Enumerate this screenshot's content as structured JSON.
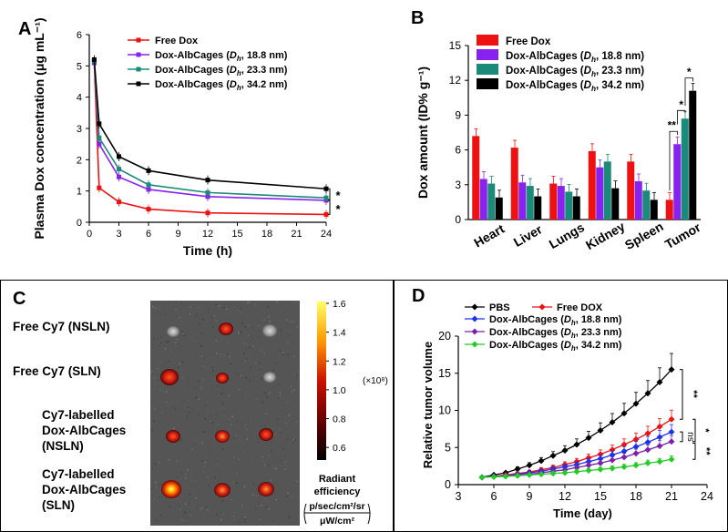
{
  "panels": {
    "A": {
      "label": "A"
    },
    "B": {
      "label": "B"
    },
    "C": {
      "label": "C"
    },
    "D": {
      "label": "D"
    }
  },
  "chart_data": [
    {
      "panel": "A",
      "type": "line",
      "xlabel": "Time (h)",
      "ylabel": "Plasma Dox concentration (μg mL⁻¹)",
      "xlim": [
        0,
        24
      ],
      "ylim": [
        0,
        6
      ],
      "xticks": [
        0,
        3,
        6,
        9,
        12,
        15,
        18,
        21,
        24
      ],
      "yticks": [
        0,
        1,
        2,
        3,
        4,
        5,
        6
      ],
      "x": [
        0.5,
        1,
        3,
        6,
        12,
        24
      ],
      "series": [
        {
          "name": "Free Dox",
          "color": "#ee1111",
          "values": [
            5.1,
            1.1,
            0.65,
            0.42,
            0.3,
            0.25
          ]
        },
        {
          "name": "Dox-AlbCages (Dh, 18.8 nm)",
          "color": "#8822ee",
          "values": [
            5.1,
            2.5,
            1.45,
            1.05,
            0.82,
            0.7
          ]
        },
        {
          "name": "Dox-AlbCages (Dh, 23.3 nm)",
          "color": "#1a8a7a",
          "values": [
            5.15,
            2.7,
            1.7,
            1.2,
            0.95,
            0.78
          ]
        },
        {
          "name": "Dox-AlbCages (Dh, 34.2 nm)",
          "color": "#000000",
          "values": [
            5.2,
            3.15,
            2.1,
            1.65,
            1.35,
            1.07
          ]
        }
      ],
      "annotations": [
        "*",
        "*"
      ],
      "legend": "top-right"
    },
    {
      "panel": "B",
      "type": "bar",
      "ylabel": "Dox amount (ID% g⁻¹)",
      "ylim": [
        0,
        15
      ],
      "yticks": [
        0,
        3,
        6,
        9,
        12,
        15
      ],
      "categories": [
        "Heart",
        "Liver",
        "Lungs",
        "Kidney",
        "Spleen",
        "Tumor"
      ],
      "series": [
        {
          "name": "Free Dox",
          "color": "#ee1111",
          "values": [
            7.2,
            6.2,
            3.1,
            5.9,
            5.0,
            1.7
          ]
        },
        {
          "name": "Dox-AlbCages (Dh, 18.8 nm)",
          "color": "#8822ee",
          "values": [
            3.5,
            3.2,
            2.9,
            4.5,
            3.3,
            6.5
          ]
        },
        {
          "name": "Dox-AlbCages (Dh, 23.3 nm)",
          "color": "#1a8a7a",
          "values": [
            3.1,
            2.9,
            2.4,
            5.0,
            2.5,
            8.7
          ]
        },
        {
          "name": "Dox-AlbCages (Dh, 34.2 nm)",
          "color": "#000000",
          "values": [
            1.9,
            2.0,
            2.0,
            2.7,
            1.7,
            11.1
          ]
        }
      ],
      "annotations": [
        "**",
        "*",
        "*"
      ],
      "legend": "top-left"
    },
    {
      "panel": "D",
      "type": "line",
      "xlabel": "Time (day)",
      "ylabel": "Relative tumor volume",
      "xlim": [
        3,
        24
      ],
      "ylim": [
        0,
        20
      ],
      "xticks": [
        3,
        6,
        9,
        12,
        15,
        18,
        21,
        24
      ],
      "yticks": [
        0,
        5,
        10,
        15,
        20
      ],
      "x": [
        5,
        6,
        7,
        8,
        9,
        10,
        11,
        12,
        13,
        14,
        15,
        16,
        17,
        18,
        19,
        20,
        21
      ],
      "series": [
        {
          "name": "PBS",
          "color": "#000000",
          "values": [
            1.0,
            1.3,
            1.6,
            2.1,
            2.6,
            3.2,
            3.9,
            4.6,
            5.4,
            6.3,
            7.3,
            8.4,
            9.6,
            10.9,
            12.3,
            13.8,
            15.5
          ]
        },
        {
          "name": "Free DOX",
          "color": "#ee1111",
          "values": [
            1.0,
            1.1,
            1.3,
            1.5,
            1.7,
            2.0,
            2.3,
            2.7,
            3.1,
            3.6,
            4.1,
            4.7,
            5.4,
            6.1,
            6.9,
            7.8,
            8.8
          ]
        },
        {
          "name": "Dox-AlbCages (Dh, 18.8 nm)",
          "color": "#1a33ee",
          "values": [
            1.0,
            1.1,
            1.2,
            1.4,
            1.6,
            1.8,
            2.1,
            2.4,
            2.7,
            3.1,
            3.5,
            4.0,
            4.5,
            5.1,
            5.7,
            6.4,
            7.1
          ]
        },
        {
          "name": "Dox-AlbCages (Dh, 23.3 nm)",
          "color": "#7a22aa",
          "values": [
            1.0,
            1.1,
            1.2,
            1.3,
            1.4,
            1.6,
            1.8,
            2.0,
            2.3,
            2.6,
            2.9,
            3.3,
            3.7,
            4.2,
            4.7,
            5.2,
            5.8
          ]
        },
        {
          "name": "Dox-AlbCages (Dh, 34.2 nm)",
          "color": "#22cc22",
          "values": [
            1.0,
            1.05,
            1.1,
            1.2,
            1.3,
            1.4,
            1.5,
            1.6,
            1.75,
            1.9,
            2.05,
            2.2,
            2.4,
            2.6,
            2.9,
            3.1,
            3.4
          ]
        }
      ],
      "annotations": [
        "**",
        "ns",
        "*",
        "**"
      ],
      "legend": "top-left"
    }
  ],
  "panelC": {
    "row_labels": [
      "Free Cy7 (NSLN)",
      "Free Cy7 (SLN)",
      "Cy7-labelled\nDox-AlbCages\n(NSLN)",
      "Cy7-labelled\nDox-AlbCages\n(SLN)"
    ],
    "colorbar": {
      "ticks": [
        "1.6",
        "1.4",
        "1.2",
        "1.0",
        "0.8",
        "0.6"
      ],
      "multiplier": "(×10⁸)",
      "title": "Radiant\nefficiency",
      "unit_top": "p/sec/cm²/sr",
      "unit_bottom": "μW/cm²"
    }
  }
}
